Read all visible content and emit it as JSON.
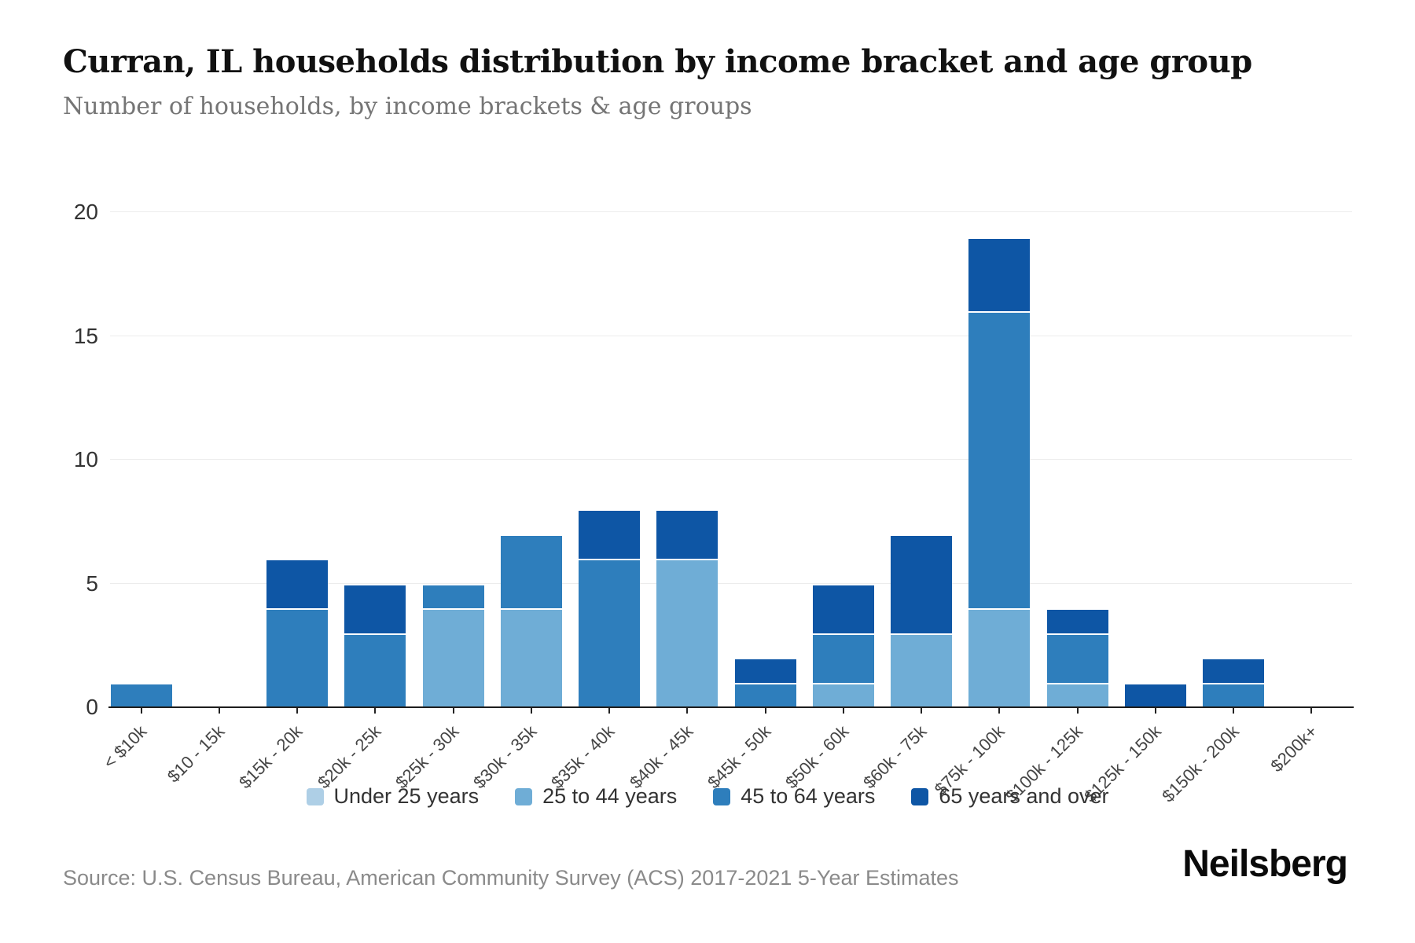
{
  "header": {
    "title": "Curran, IL households distribution by income bracket and age group",
    "subtitle": "Number of households, by income brackets & age groups"
  },
  "chart_data": {
    "type": "bar",
    "stacked": true,
    "title": "Curran, IL households distribution by income bracket and age group",
    "xlabel": "",
    "ylabel": "",
    "ylim": [
      0,
      20
    ],
    "yticks": [
      0,
      5,
      10,
      15,
      20
    ],
    "grid": true,
    "legend_position": "bottom",
    "categories": [
      "< $10k",
      "$10 - 15k",
      "$15k - 20k",
      "$20k - 25k",
      "$25k - 30k",
      "$30k - 35k",
      "$35k - 40k",
      "$40k - 45k",
      "$45k - 50k",
      "$50k - 60k",
      "$60k - 75k",
      "$75k - 100k",
      "$100k - 125k",
      "$125k - 150k",
      "$150k - 200k",
      "$200k+"
    ],
    "series": [
      {
        "name": "Under 25 years",
        "color": "#AECFE6",
        "values": [
          0,
          0,
          0,
          0,
          0,
          0,
          0,
          0,
          0,
          0,
          0,
          0,
          0,
          0,
          0,
          0
        ]
      },
      {
        "name": "25 to 44 years",
        "color": "#6FADD6",
        "values": [
          0,
          0,
          0,
          0,
          4,
          4,
          0,
          6,
          0,
          1,
          3,
          4,
          1,
          0,
          0,
          0
        ]
      },
      {
        "name": "45 to 64 years",
        "color": "#2E7EBC",
        "values": [
          1,
          0,
          4,
          3,
          1,
          3,
          6,
          0,
          1,
          2,
          0,
          12,
          2,
          0,
          1,
          0
        ]
      },
      {
        "name": "65 years and over",
        "color": "#0E56A5",
        "values": [
          0,
          0,
          2,
          2,
          0,
          0,
          2,
          2,
          1,
          2,
          4,
          3,
          1,
          1,
          1,
          0
        ]
      }
    ]
  },
  "footer": {
    "source": "Source: U.S. Census Bureau, American Community Survey (ACS) 2017-2021 5-Year Estimates",
    "brand": "Neilsberg"
  }
}
